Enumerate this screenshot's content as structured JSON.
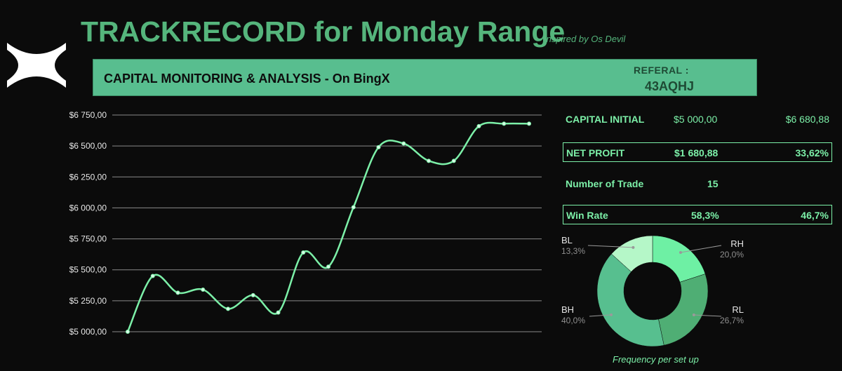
{
  "header": {
    "title": "TRACKRECORD for Monday Range",
    "subtitle": "Inspired by Os Devil",
    "logo_icon": "x-logo-icon"
  },
  "banner": {
    "title": "CAPITAL MONITORING & ANALYSIS - On BingX",
    "referral_label": "REFERAL :",
    "referral_code": "43AQHJ",
    "color": "#58be8f"
  },
  "stats": {
    "capital_initial": {
      "label": "CAPITAL INITIAL",
      "value": "$5 000,00",
      "value2": "$6 680,88"
    },
    "net_profit": {
      "label": "NET PROFIT",
      "value": "$1 680,88",
      "value2": "33,62%"
    },
    "num_trades": {
      "label": "Number of Trade",
      "value": "15"
    },
    "win_rate": {
      "label": "Win Rate",
      "value": "58,3%",
      "value2": "46,7%"
    }
  },
  "chart_data": [
    {
      "type": "line",
      "title": "",
      "xlabel": "",
      "ylabel": "",
      "ylim": [
        5000,
        6750
      ],
      "y_ticks": [
        "$5 000,00",
        "$5 250,00",
        "$5 500,00",
        "$5 750,00",
        "$6 000,00",
        "$6 250,00",
        "$6 500,00",
        "$6 750,00"
      ],
      "grid": true,
      "line_color": "#7cf0a8",
      "series": [
        {
          "values": [
            5000,
            5450,
            5315,
            5340,
            5185,
            5295,
            5155,
            5640,
            5525,
            6005,
            6490,
            6520,
            6380,
            6380,
            6660,
            6680,
            6680
          ]
        }
      ]
    },
    {
      "type": "pie",
      "variant": "donut",
      "title": "Frequency per set up",
      "slices": [
        {
          "label": "RH",
          "value": 20.0,
          "pct": "20,0%",
          "color": "#6ef0a4"
        },
        {
          "label": "RL",
          "value": 26.7,
          "pct": "26,7%",
          "color": "#4fae74"
        },
        {
          "label": "BH",
          "value": 40.0,
          "pct": "40,0%",
          "color": "#57bf8f"
        },
        {
          "label": "BL",
          "value": 13.3,
          "pct": "13,3%",
          "color": "#b5f7c8"
        }
      ]
    }
  ]
}
